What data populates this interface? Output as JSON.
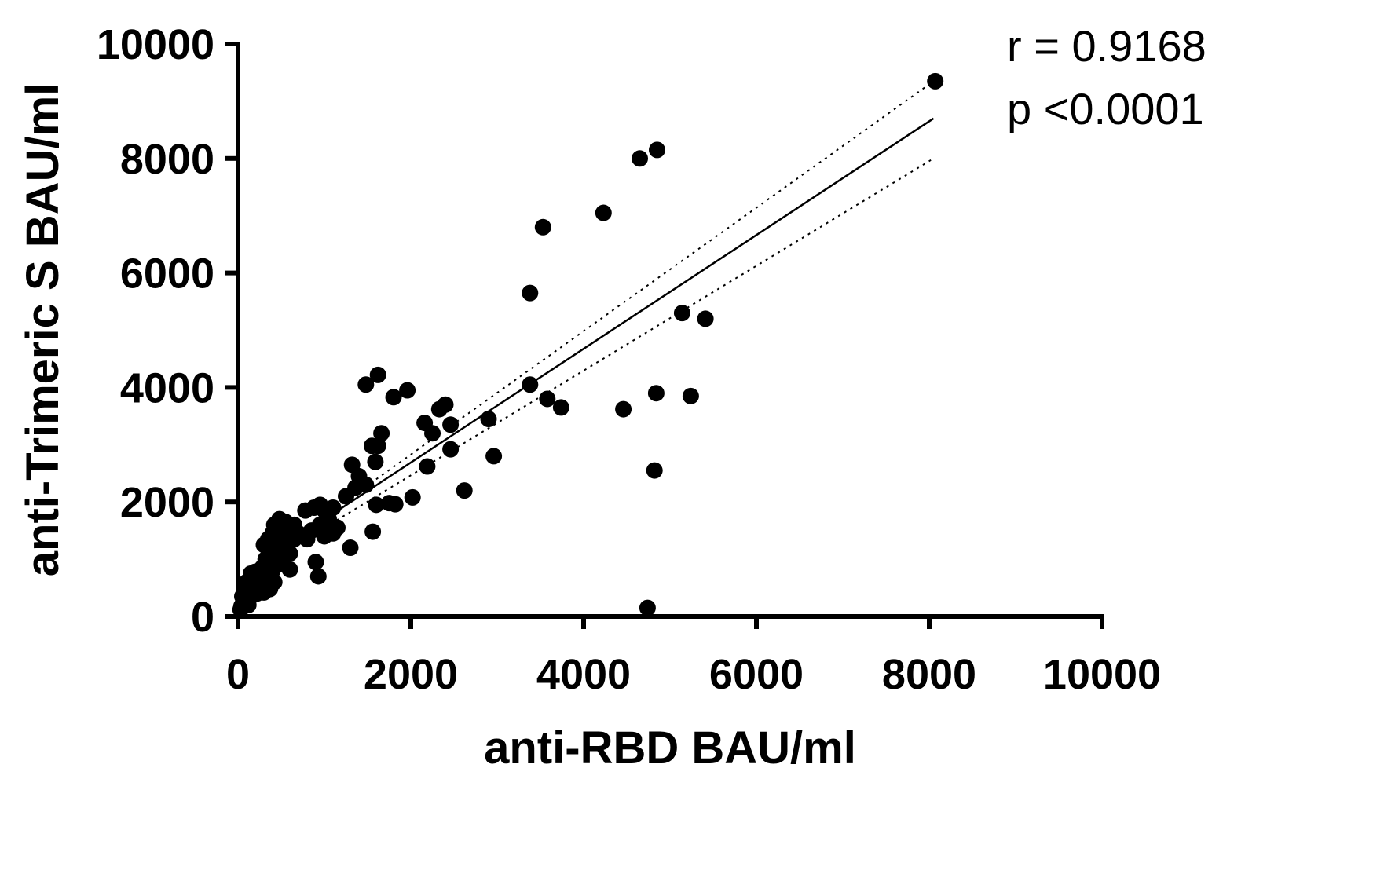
{
  "chart_data": {
    "type": "scatter",
    "xlabel": "anti-RBD BAU/ml",
    "ylabel": "anti-Trimeric S BAU/ml",
    "xlim": [
      0,
      10000
    ],
    "ylim": [
      0,
      10000
    ],
    "x_ticks": [
      "0",
      "2000",
      "4000",
      "6000",
      "8000",
      "10000"
    ],
    "y_ticks": [
      "0",
      "2000",
      "4000",
      "6000",
      "8000",
      "10000"
    ],
    "grid": false,
    "annotations": [
      "r = 0.9168",
      "p <0.0001"
    ],
    "fit_line": {
      "x": [
        300,
        8050
      ],
      "y": [
        1000,
        8700
      ]
    },
    "ci_upper": {
      "x": [
        1000,
        8050
      ],
      "y": [
        1750,
        9350
      ]
    },
    "ci_lower": {
      "x": [
        1000,
        8050
      ],
      "y": [
        1550,
        8000
      ]
    },
    "points": [
      {
        "x": 8070,
        "y": 9350
      },
      {
        "x": 4850,
        "y": 8150
      },
      {
        "x": 4650,
        "y": 8000
      },
      {
        "x": 4230,
        "y": 7050
      },
      {
        "x": 3530,
        "y": 6800
      },
      {
        "x": 3380,
        "y": 5650
      },
      {
        "x": 5140,
        "y": 5300
      },
      {
        "x": 5410,
        "y": 5200
      },
      {
        "x": 3380,
        "y": 4050
      },
      {
        "x": 3580,
        "y": 3800
      },
      {
        "x": 3740,
        "y": 3650
      },
      {
        "x": 4460,
        "y": 3620
      },
      {
        "x": 4840,
        "y": 3900
      },
      {
        "x": 5240,
        "y": 3850
      },
      {
        "x": 4820,
        "y": 2550
      },
      {
        "x": 4740,
        "y": 150
      },
      {
        "x": 1480,
        "y": 4050
      },
      {
        "x": 1620,
        "y": 4220
      },
      {
        "x": 1960,
        "y": 3950
      },
      {
        "x": 1800,
        "y": 3830
      },
      {
        "x": 2330,
        "y": 3620
      },
      {
        "x": 2400,
        "y": 3700
      },
      {
        "x": 2160,
        "y": 3380
      },
      {
        "x": 2250,
        "y": 3200
      },
      {
        "x": 2460,
        "y": 3350
      },
      {
        "x": 2460,
        "y": 2920
      },
      {
        "x": 2900,
        "y": 3450
      },
      {
        "x": 2960,
        "y": 2800
      },
      {
        "x": 2190,
        "y": 2620
      },
      {
        "x": 2620,
        "y": 2200
      },
      {
        "x": 2020,
        "y": 2080
      },
      {
        "x": 1660,
        "y": 3200
      },
      {
        "x": 1550,
        "y": 2980
      },
      {
        "x": 1620,
        "y": 2980
      },
      {
        "x": 1590,
        "y": 2700
      },
      {
        "x": 1320,
        "y": 2650
      },
      {
        "x": 1400,
        "y": 2450
      },
      {
        "x": 1480,
        "y": 2300
      },
      {
        "x": 1360,
        "y": 2250
      },
      {
        "x": 1250,
        "y": 2100
      },
      {
        "x": 1600,
        "y": 1950
      },
      {
        "x": 1750,
        "y": 1980
      },
      {
        "x": 1820,
        "y": 1960
      },
      {
        "x": 1560,
        "y": 1480
      },
      {
        "x": 1300,
        "y": 1200
      },
      {
        "x": 1100,
        "y": 1900
      },
      {
        "x": 1000,
        "y": 1850
      },
      {
        "x": 950,
        "y": 1950
      },
      {
        "x": 880,
        "y": 1900
      },
      {
        "x": 780,
        "y": 1850
      },
      {
        "x": 1050,
        "y": 1700
      },
      {
        "x": 1150,
        "y": 1550
      },
      {
        "x": 950,
        "y": 1600
      },
      {
        "x": 850,
        "y": 1500
      },
      {
        "x": 1000,
        "y": 1400
      },
      {
        "x": 800,
        "y": 1350
      },
      {
        "x": 1100,
        "y": 1450
      },
      {
        "x": 900,
        "y": 950
      },
      {
        "x": 930,
        "y": 700
      },
      {
        "x": 650,
        "y": 1600
      },
      {
        "x": 600,
        "y": 1550
      },
      {
        "x": 550,
        "y": 1650
      },
      {
        "x": 480,
        "y": 1700
      },
      {
        "x": 420,
        "y": 1600
      },
      {
        "x": 700,
        "y": 1450
      },
      {
        "x": 650,
        "y": 1350
      },
      {
        "x": 500,
        "y": 1400
      },
      {
        "x": 400,
        "y": 1450
      },
      {
        "x": 350,
        "y": 1350
      },
      {
        "x": 300,
        "y": 1250
      },
      {
        "x": 550,
        "y": 1250
      },
      {
        "x": 600,
        "y": 1100
      },
      {
        "x": 450,
        "y": 1150
      },
      {
        "x": 380,
        "y": 1100
      },
      {
        "x": 320,
        "y": 1000
      },
      {
        "x": 500,
        "y": 1000
      },
      {
        "x": 600,
        "y": 820
      },
      {
        "x": 450,
        "y": 900
      },
      {
        "x": 400,
        "y": 800
      },
      {
        "x": 350,
        "y": 750
      },
      {
        "x": 280,
        "y": 850
      },
      {
        "x": 250,
        "y": 700
      },
      {
        "x": 200,
        "y": 780
      },
      {
        "x": 150,
        "y": 750
      },
      {
        "x": 420,
        "y": 600
      },
      {
        "x": 330,
        "y": 550
      },
      {
        "x": 270,
        "y": 600
      },
      {
        "x": 200,
        "y": 550
      },
      {
        "x": 150,
        "y": 500
      },
      {
        "x": 100,
        "y": 600
      },
      {
        "x": 300,
        "y": 420
      },
      {
        "x": 220,
        "y": 400
      },
      {
        "x": 150,
        "y": 350
      },
      {
        "x": 100,
        "y": 300
      },
      {
        "x": 80,
        "y": 420
      },
      {
        "x": 60,
        "y": 250
      },
      {
        "x": 40,
        "y": 180
      },
      {
        "x": 30,
        "y": 120
      },
      {
        "x": 50,
        "y": 350
      },
      {
        "x": 120,
        "y": 200
      },
      {
        "x": 370,
        "y": 480
      },
      {
        "x": 240,
        "y": 480
      }
    ]
  }
}
